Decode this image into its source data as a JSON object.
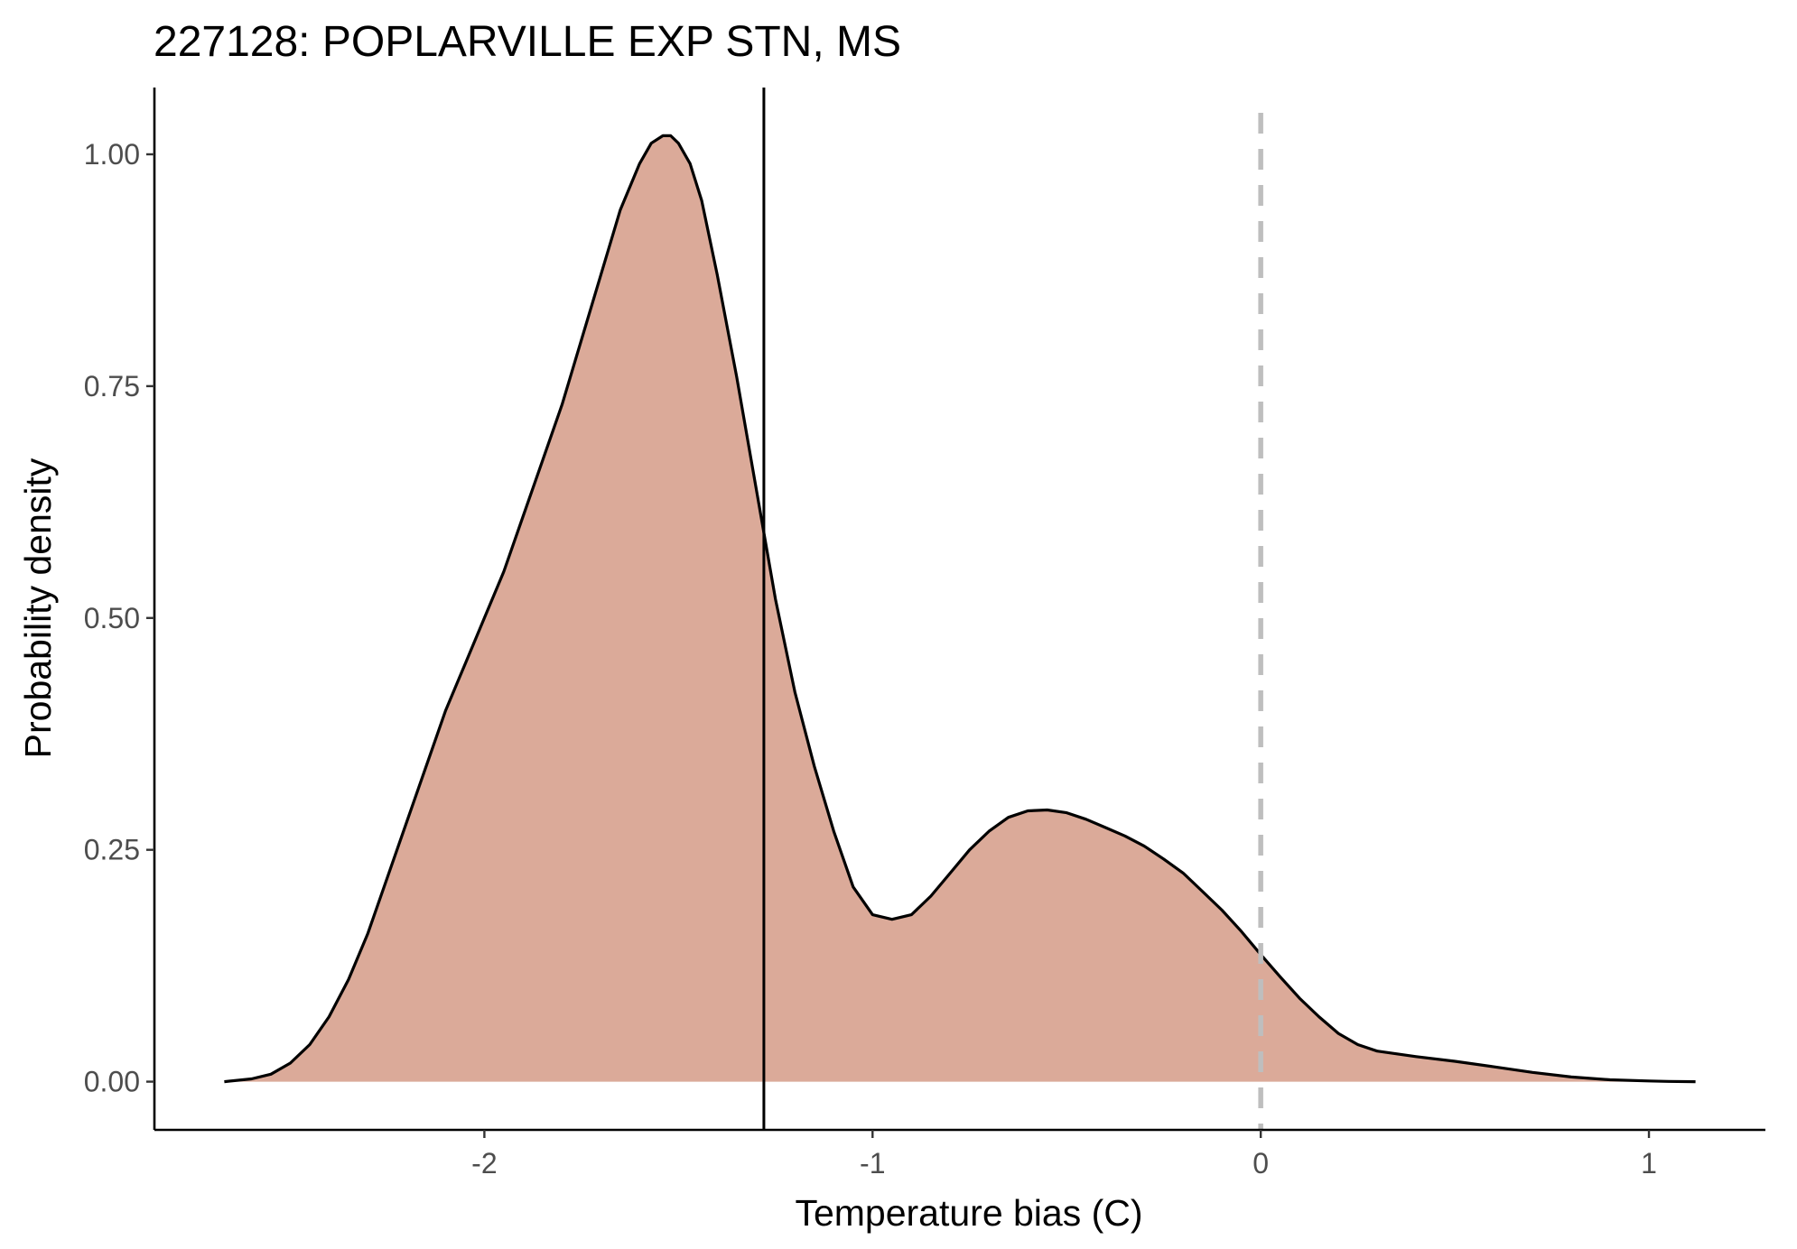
{
  "chart_data": {
    "type": "area",
    "title": "227128: POPLARVILLE EXP STN, MS",
    "xlabel": "Temperature bias (C)",
    "ylabel": "Probability density",
    "xlim": [
      -2.85,
      1.3
    ],
    "ylim": [
      -0.052,
      1.072
    ],
    "x_ticks": [
      -2,
      -1,
      0,
      1
    ],
    "x_tick_labels": [
      "-2",
      "-1",
      "0",
      "1"
    ],
    "y_ticks": [
      0,
      0.25,
      0.5,
      0.75,
      1.0
    ],
    "y_tick_labels": [
      "0.00",
      "0.25",
      "0.50",
      "0.75",
      "1.00"
    ],
    "grid": false,
    "legend": "none",
    "fill_color": "#dbaa99",
    "line_color": "#000000",
    "reference_lines": [
      {
        "x": -1.28,
        "style": "solid",
        "color": "#000000"
      },
      {
        "x": 0,
        "style": "dashed",
        "color": "#bebebe"
      }
    ],
    "series": [
      {
        "x": [
          -2.67,
          -2.6,
          -2.55,
          -2.5,
          -2.45,
          -2.4,
          -2.35,
          -2.3,
          -2.25,
          -2.2,
          -2.15,
          -2.1,
          -2.05,
          -2.0,
          -1.95,
          -1.9,
          -1.85,
          -1.8,
          -1.75,
          -1.7,
          -1.65,
          -1.6,
          -1.57,
          -1.54,
          -1.52,
          -1.5,
          -1.47,
          -1.44,
          -1.4,
          -1.35,
          -1.3,
          -1.25,
          -1.2,
          -1.15,
          -1.1,
          -1.05,
          -1.0,
          -0.95,
          -0.9,
          -0.85,
          -0.8,
          -0.75,
          -0.7,
          -0.65,
          -0.6,
          -0.55,
          -0.5,
          -0.45,
          -0.4,
          -0.35,
          -0.3,
          -0.25,
          -0.2,
          -0.15,
          -0.1,
          -0.05,
          0.0,
          0.05,
          0.1,
          0.15,
          0.2,
          0.25,
          0.3,
          0.4,
          0.5,
          0.6,
          0.7,
          0.8,
          0.9,
          1.0,
          1.05,
          1.12
        ],
        "y": [
          0.0,
          0.003,
          0.008,
          0.02,
          0.04,
          0.07,
          0.11,
          0.16,
          0.22,
          0.28,
          0.34,
          0.4,
          0.45,
          0.5,
          0.55,
          0.61,
          0.67,
          0.73,
          0.8,
          0.87,
          0.94,
          0.99,
          1.012,
          1.02,
          1.02,
          1.012,
          0.99,
          0.95,
          0.87,
          0.76,
          0.64,
          0.52,
          0.42,
          0.34,
          0.27,
          0.21,
          0.18,
          0.175,
          0.18,
          0.2,
          0.225,
          0.25,
          0.27,
          0.285,
          0.292,
          0.293,
          0.29,
          0.283,
          0.274,
          0.265,
          0.254,
          0.24,
          0.225,
          0.205,
          0.185,
          0.162,
          0.137,
          0.113,
          0.09,
          0.07,
          0.052,
          0.04,
          0.033,
          0.027,
          0.022,
          0.016,
          0.01,
          0.005,
          0.002,
          0.0007,
          0.0003,
          0.0
        ]
      }
    ]
  }
}
